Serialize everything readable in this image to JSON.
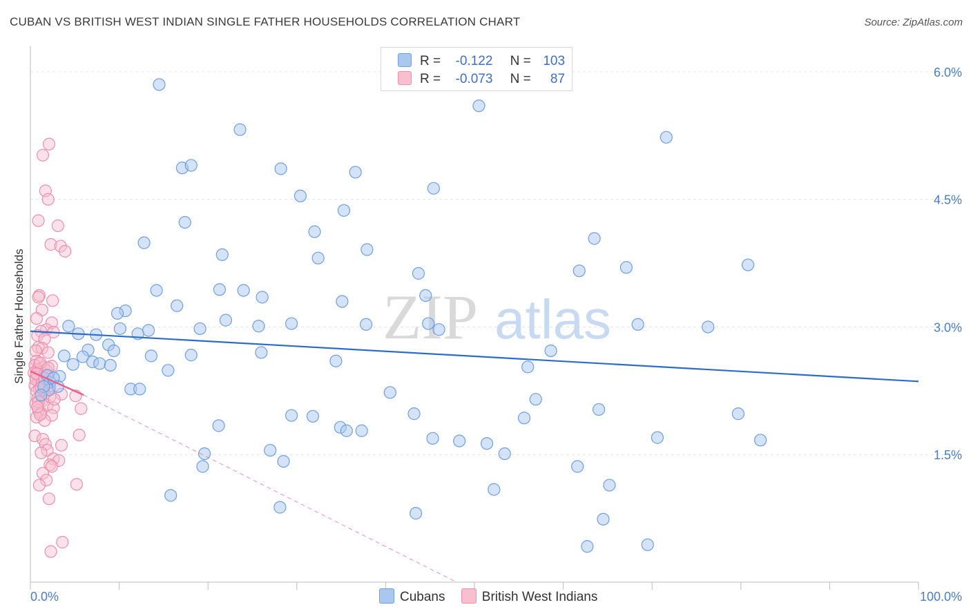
{
  "header": {
    "title": "CUBAN VS BRITISH WEST INDIAN SINGLE FATHER HOUSEHOLDS CORRELATION CHART",
    "source": "Source: ZipAtlas.com"
  },
  "legend": {
    "r_label": "R =",
    "n_label": "N =",
    "cubans": {
      "r": "-0.122",
      "n": "103"
    },
    "bwi": {
      "r": "-0.073",
      "n": "87"
    }
  },
  "watermark": {
    "zip": "ZIP",
    "atlas": "atlas"
  },
  "colors": {
    "cuban_fill": "#aac8ef",
    "cuban_stroke": "#6f9fe0",
    "cuban_line": "#2b6cc8",
    "bwi_fill": "#f7bfd0",
    "bwi_stroke": "#ee8eac",
    "bwi_line": "#e6628d",
    "tick_color": "#4a7cc7",
    "grid": "#e3e3e3"
  },
  "chart_data": {
    "type": "scatter",
    "title": "CUBAN VS BRITISH WEST INDIAN SINGLE FATHER HOUSEHOLDS CORRELATION CHART",
    "xlabel": "",
    "ylabel": "Single Father Households",
    "xlim": [
      0,
      100
    ],
    "ylim": [
      0,
      6.3
    ],
    "x_tick_labels": [
      "0.0%",
      "100.0%"
    ],
    "y_ticks": [
      1.5,
      3.0,
      4.5,
      6.0
    ],
    "y_tick_labels": [
      "1.5%",
      "3.0%",
      "4.5%",
      "6.0%"
    ],
    "legend_position": "top-center",
    "series": [
      {
        "name": "Cubans",
        "r": -0.122,
        "n": 103,
        "trend": {
          "x": [
            0,
            100
          ],
          "y": [
            2.95,
            2.36
          ]
        },
        "points": [
          [
            14.5,
            5.85
          ],
          [
            50.5,
            5.6
          ],
          [
            23.6,
            5.32
          ],
          [
            71.6,
            5.23
          ],
          [
            17.1,
            4.87
          ],
          [
            18.1,
            4.9
          ],
          [
            28.2,
            4.86
          ],
          [
            36.6,
            4.82
          ],
          [
            45.4,
            4.63
          ],
          [
            30.4,
            4.54
          ],
          [
            35.3,
            4.37
          ],
          [
            17.4,
            4.23
          ],
          [
            32.0,
            4.12
          ],
          [
            63.5,
            4.04
          ],
          [
            12.8,
            3.99
          ],
          [
            21.6,
            3.85
          ],
          [
            37.9,
            3.91
          ],
          [
            32.4,
            3.81
          ],
          [
            80.8,
            3.73
          ],
          [
            67.1,
            3.7
          ],
          [
            61.8,
            3.66
          ],
          [
            43.7,
            3.63
          ],
          [
            14.2,
            3.43
          ],
          [
            21.3,
            3.44
          ],
          [
            24.0,
            3.43
          ],
          [
            26.1,
            3.35
          ],
          [
            44.5,
            3.37
          ],
          [
            35.1,
            3.3
          ],
          [
            16.5,
            3.25
          ],
          [
            10.7,
            3.19
          ],
          [
            9.8,
            3.16
          ],
          [
            22.0,
            3.08
          ],
          [
            44.8,
            3.04
          ],
          [
            37.8,
            3.03
          ],
          [
            29.4,
            3.04
          ],
          [
            25.7,
            3.01
          ],
          [
            68.4,
            3.03
          ],
          [
            76.3,
            3.0
          ],
          [
            46.0,
            2.97
          ],
          [
            19.1,
            2.98
          ],
          [
            10.1,
            2.98
          ],
          [
            13.3,
            2.96
          ],
          [
            12.1,
            2.92
          ],
          [
            4.3,
            3.01
          ],
          [
            5.4,
            2.92
          ],
          [
            7.4,
            2.91
          ],
          [
            8.8,
            2.79
          ],
          [
            6.5,
            2.73
          ],
          [
            9.4,
            2.72
          ],
          [
            26.0,
            2.7
          ],
          [
            58.6,
            2.72
          ],
          [
            3.8,
            2.66
          ],
          [
            5.9,
            2.65
          ],
          [
            13.6,
            2.66
          ],
          [
            18.1,
            2.67
          ],
          [
            34.4,
            2.6
          ],
          [
            7.0,
            2.59
          ],
          [
            7.8,
            2.57
          ],
          [
            9.0,
            2.55
          ],
          [
            4.8,
            2.56
          ],
          [
            56.0,
            2.53
          ],
          [
            15.5,
            2.49
          ],
          [
            3.3,
            2.42
          ],
          [
            1.9,
            2.43
          ],
          [
            2.2,
            2.35
          ],
          [
            11.3,
            2.27
          ],
          [
            12.3,
            2.27
          ],
          [
            2.1,
            2.26
          ],
          [
            40.5,
            2.23
          ],
          [
            56.9,
            2.15
          ],
          [
            43.2,
            1.98
          ],
          [
            29.4,
            1.96
          ],
          [
            31.8,
            1.95
          ],
          [
            64.0,
            2.03
          ],
          [
            79.7,
            1.98
          ],
          [
            55.6,
            1.93
          ],
          [
            21.2,
            1.84
          ],
          [
            34.9,
            1.82
          ],
          [
            35.6,
            1.78
          ],
          [
            37.3,
            1.78
          ],
          [
            45.3,
            1.69
          ],
          [
            48.3,
            1.66
          ],
          [
            51.4,
            1.63
          ],
          [
            70.6,
            1.7
          ],
          [
            82.2,
            1.67
          ],
          [
            27.0,
            1.55
          ],
          [
            19.6,
            1.51
          ],
          [
            53.4,
            1.51
          ],
          [
            28.5,
            1.42
          ],
          [
            19.4,
            1.36
          ],
          [
            61.6,
            1.36
          ],
          [
            52.2,
            1.09
          ],
          [
            65.2,
            1.14
          ],
          [
            15.8,
            1.02
          ],
          [
            28.1,
            0.88
          ],
          [
            43.4,
            0.81
          ],
          [
            64.5,
            0.74
          ],
          [
            62.7,
            0.42
          ],
          [
            69.5,
            0.44
          ],
          [
            1.5,
            2.3
          ],
          [
            2.6,
            2.4
          ],
          [
            3.1,
            2.3
          ],
          [
            1.2,
            2.2
          ]
        ]
      },
      {
        "name": "British West Indians",
        "r": -0.073,
        "n": 87,
        "trend": {
          "x": [
            0,
            6.0
          ],
          "y": [
            2.48,
            2.2
          ]
        },
        "dashed_extension": {
          "x": [
            6.0,
            48.0
          ],
          "y": [
            2.2,
            0.0
          ]
        },
        "points": [
          [
            2.1,
            5.15
          ],
          [
            1.4,
            5.02
          ],
          [
            1.7,
            4.6
          ],
          [
            2.0,
            4.5
          ],
          [
            0.9,
            4.25
          ],
          [
            3.1,
            4.19
          ],
          [
            2.3,
            3.97
          ],
          [
            3.4,
            3.95
          ],
          [
            3.9,
            3.89
          ],
          [
            1.0,
            3.37
          ],
          [
            0.9,
            3.35
          ],
          [
            2.5,
            3.31
          ],
          [
            1.3,
            3.2
          ],
          [
            0.7,
            3.1
          ],
          [
            2.4,
            3.05
          ],
          [
            1.8,
            2.97
          ],
          [
            1.2,
            2.95
          ],
          [
            2.6,
            2.94
          ],
          [
            0.8,
            2.9
          ],
          [
            1.6,
            2.86
          ],
          [
            0.9,
            2.76
          ],
          [
            1.3,
            2.75
          ],
          [
            0.6,
            2.72
          ],
          [
            2.0,
            2.7
          ],
          [
            0.7,
            2.6
          ],
          [
            1.0,
            2.57
          ],
          [
            0.5,
            2.55
          ],
          [
            1.5,
            2.53
          ],
          [
            2.4,
            2.54
          ],
          [
            0.8,
            2.5
          ],
          [
            1.2,
            2.47
          ],
          [
            0.4,
            2.46
          ],
          [
            1.9,
            2.44
          ],
          [
            0.6,
            2.41
          ],
          [
            1.4,
            2.39
          ],
          [
            0.9,
            2.36
          ],
          [
            1.7,
            2.33
          ],
          [
            0.5,
            2.31
          ],
          [
            2.2,
            2.29
          ],
          [
            1.0,
            2.27
          ],
          [
            0.7,
            2.24
          ],
          [
            1.6,
            2.22
          ],
          [
            3.5,
            2.21
          ],
          [
            5.1,
            2.19
          ],
          [
            0.8,
            2.16
          ],
          [
            1.3,
            2.13
          ],
          [
            0.6,
            2.1
          ],
          [
            1.9,
            2.08
          ],
          [
            2.6,
            2.05
          ],
          [
            0.9,
            2.02
          ],
          [
            5.7,
            2.04
          ],
          [
            1.2,
            1.99
          ],
          [
            2.4,
            1.96
          ],
          [
            0.7,
            1.94
          ],
          [
            1.6,
            1.9
          ],
          [
            1.1,
            1.97
          ],
          [
            0.5,
            1.72
          ],
          [
            5.5,
            1.73
          ],
          [
            1.4,
            1.68
          ],
          [
            1.7,
            1.62
          ],
          [
            3.5,
            1.61
          ],
          [
            1.9,
            1.55
          ],
          [
            1.2,
            1.52
          ],
          [
            2.6,
            1.45
          ],
          [
            3.2,
            1.43
          ],
          [
            2.2,
            1.38
          ],
          [
            2.4,
            1.36
          ],
          [
            1.4,
            1.28
          ],
          [
            1.8,
            1.2
          ],
          [
            5.2,
            1.15
          ],
          [
            1.0,
            1.14
          ],
          [
            2.1,
            0.98
          ],
          [
            3.6,
            0.47
          ],
          [
            2.3,
            0.36
          ],
          [
            0.6,
            2.38
          ],
          [
            1.8,
            2.49
          ],
          [
            1.1,
            2.58
          ],
          [
            0.9,
            2.12
          ],
          [
            2.2,
            2.18
          ],
          [
            1.5,
            2.26
          ],
          [
            0.7,
            2.45
          ],
          [
            1.3,
            2.34
          ],
          [
            2.0,
            2.52
          ],
          [
            0.8,
            2.06
          ],
          [
            1.6,
            2.4
          ],
          [
            2.7,
            2.15
          ],
          [
            1.2,
            2.29
          ]
        ]
      }
    ]
  }
}
